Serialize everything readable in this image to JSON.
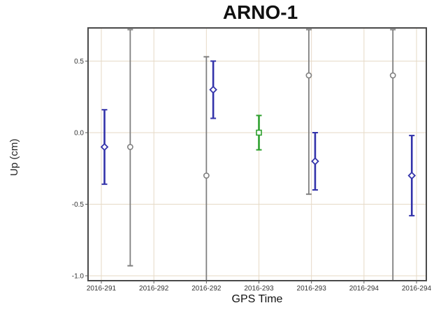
{
  "chart_data": {
    "type": "scatter",
    "title": "ARNO-1",
    "xlabel": "GPS Time",
    "ylabel": "Up (cm)",
    "ylim": [
      -1.05,
      0.72
    ],
    "grid": true,
    "x_tick_labels": [
      "2016-291",
      "2016-292",
      "2016-292",
      "2016-293",
      "2016-293",
      "2016-294",
      "2016-294"
    ],
    "y_tick_labels": [
      "0.5",
      "0.0",
      "-0.5",
      "-1.0"
    ],
    "y_ticks": [
      0.5,
      0.0,
      -0.5,
      -1.0
    ],
    "series": [
      {
        "color": "#3333aa",
        "marker": "diamond",
        "points": [
          {
            "x": 0.06,
            "y": -0.1,
            "err_low": -0.36,
            "err_high": 0.16
          },
          {
            "x": 2.13,
            "y": 0.3,
            "err_low": 0.1,
            "err_high": 0.5
          },
          {
            "x": 4.07,
            "y": -0.2,
            "err_low": -0.4,
            "err_high": 0.0
          },
          {
            "x": 5.91,
            "y": -0.3,
            "err_low": -0.58,
            "err_high": -0.02
          }
        ]
      },
      {
        "color": "#808080",
        "marker": "circle",
        "points": [
          {
            "x": 0.55,
            "y": -0.1,
            "err_low": -0.93,
            "err_high": 0.72
          },
          {
            "x": 2.0,
            "y": -0.3,
            "err_low": -1.05,
            "err_high": 0.53
          },
          {
            "x": 3.95,
            "y": 0.4,
            "err_low": -0.43,
            "err_high": 0.72
          },
          {
            "x": 5.55,
            "y": 0.4,
            "err_low": -1.05,
            "err_high": 0.72
          }
        ]
      },
      {
        "color": "#2ea02e",
        "marker": "square",
        "points": [
          {
            "x": 3.0,
            "y": 0.0,
            "err_low": -0.12,
            "err_high": 0.12
          }
        ]
      }
    ]
  }
}
